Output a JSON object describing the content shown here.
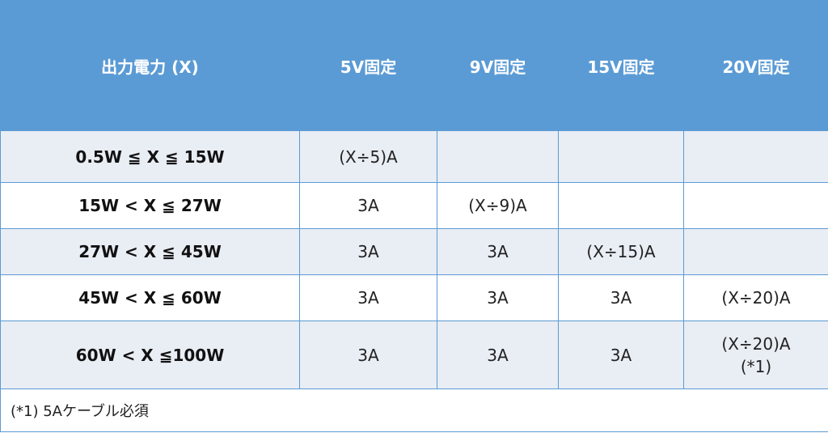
{
  "table": {
    "header": [
      "出力電力 (X)",
      "5V固定",
      "9V固定",
      "15V固定",
      "20V固定"
    ],
    "rows": [
      [
        "0.5W ≦ X ≦ 15W",
        "(X÷5)A"
      ],
      [
        "15W < X ≦ 27W",
        "3A",
        "(X÷9)A"
      ],
      [
        "27W < X ≦ 45W",
        "3A",
        "3A",
        "(X÷15)A"
      ],
      [
        "45W < X ≦ 60W",
        "3A",
        "3A",
        "3A",
        "(X÷20)A"
      ],
      [
        "60W < X ≦100W",
        "3A",
        "3A",
        "3A",
        [
          "(X÷20)A",
          "(*1)"
        ]
      ]
    ],
    "footnote": "(*1) 5Aケーブル必須"
  }
}
